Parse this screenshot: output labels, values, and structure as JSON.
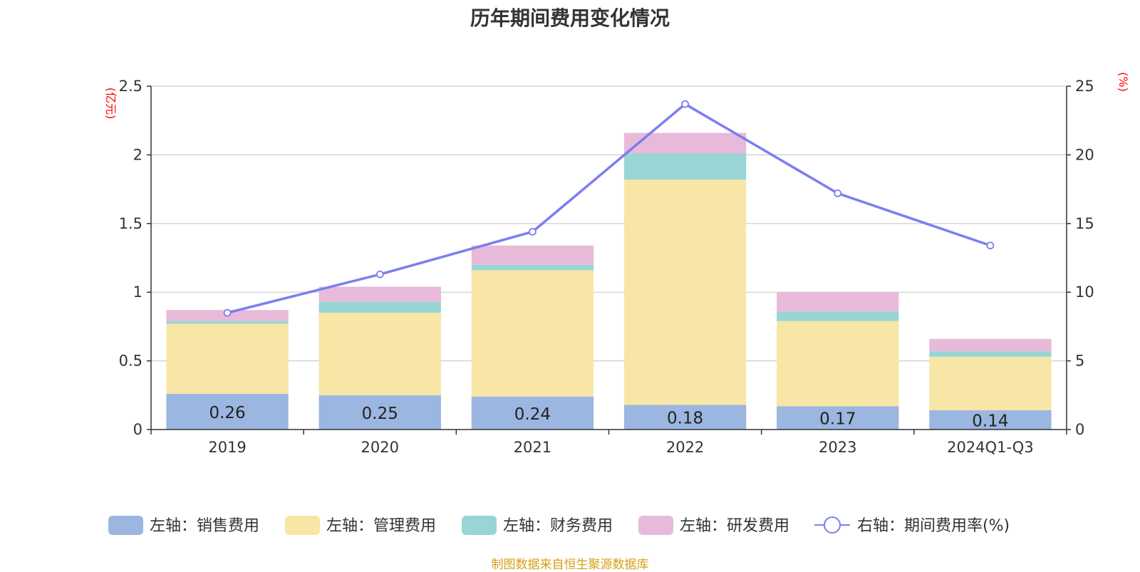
{
  "title": "历年期间费用变化情况",
  "source": "制图数据来自恒生聚源数据库",
  "chart_data": {
    "type": "bar",
    "stacked": true,
    "categories": [
      "2019",
      "2020",
      "2021",
      "2022",
      "2023",
      "2024Q1-Q3"
    ],
    "left_axis": {
      "unit": "(亿元)",
      "ylim": [
        0,
        2.5
      ],
      "ticks": [
        "0",
        "0.5",
        "1",
        "1.5",
        "2",
        "2.5"
      ]
    },
    "right_axis": {
      "unit": "(%)",
      "ylim": [
        0,
        25
      ],
      "ticks": [
        "0",
        "5",
        "10",
        "15",
        "20",
        "25"
      ]
    },
    "grid": true,
    "legend_position": "bottom",
    "series": [
      {
        "name": "左轴：销售费用",
        "axis": "left",
        "type": "bar",
        "color": "#9bb6e0",
        "values": [
          0.26,
          0.25,
          0.24,
          0.18,
          0.17,
          0.14
        ],
        "data_labels": [
          "0.26",
          "0.25",
          "0.24",
          "0.18",
          "0.17",
          "0.14"
        ]
      },
      {
        "name": "左轴：管理费用",
        "axis": "left",
        "type": "bar",
        "color": "#f8e6a6",
        "values": [
          0.51,
          0.6,
          0.92,
          1.64,
          0.62,
          0.39
        ]
      },
      {
        "name": "左轴：财务费用",
        "axis": "left",
        "type": "bar",
        "color": "#98d5d4",
        "values": [
          0.02,
          0.08,
          0.04,
          0.19,
          0.07,
          0.04
        ]
      },
      {
        "name": "左轴：研发费用",
        "axis": "left",
        "type": "bar",
        "color": "#e8bad9",
        "values": [
          0.08,
          0.11,
          0.14,
          0.15,
          0.14,
          0.09
        ]
      },
      {
        "name": "右轴：期间费用率(%)",
        "axis": "right",
        "type": "line",
        "color": "#7b7ef0",
        "values": [
          8.5,
          11.3,
          14.4,
          23.7,
          17.2,
          13.4
        ]
      }
    ]
  }
}
